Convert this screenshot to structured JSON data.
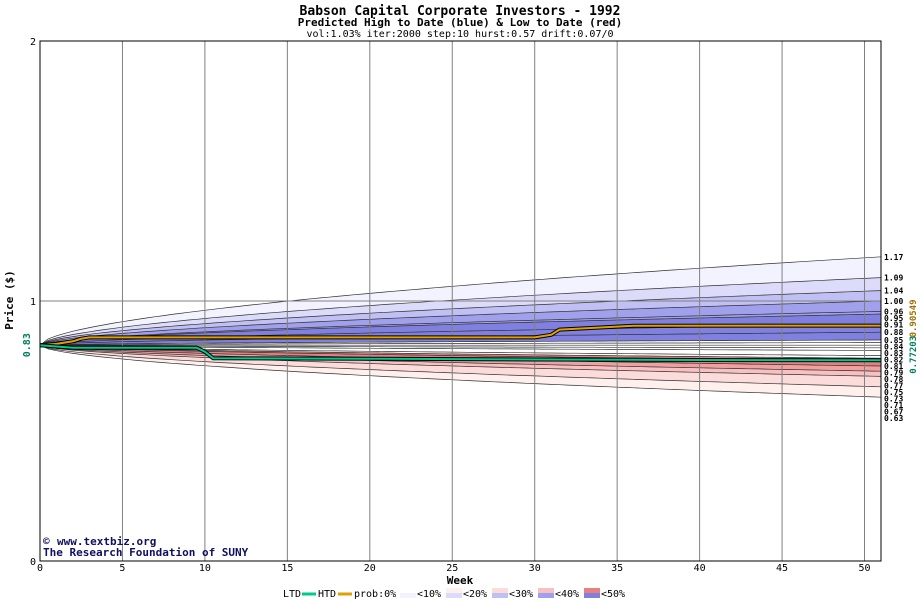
{
  "chart_data": {
    "type": "area",
    "title": "Babson Capital Corporate Investors - 1992",
    "subtitle": "Predicted High to Date (blue) &  Low to Date (red)",
    "params": "vol:1.03% iter:2000 step:10 hurst:0.57 drift:0.07/0",
    "xlabel": "Week",
    "ylabel": "Price ($)",
    "xlim": [
      0,
      51
    ],
    "ylim": [
      0,
      2
    ],
    "x_ticks": [
      0,
      5,
      10,
      15,
      20,
      25,
      30,
      35,
      40,
      45,
      50
    ],
    "y_ticks": [
      0,
      1,
      2
    ],
    "grid": true,
    "current_price": 0.83,
    "current_price_label": "0.83",
    "end_labels_right": [
      "0.77203",
      "0.90549"
    ],
    "end_label_colors": [
      "#008060",
      "#a07000"
    ],
    "high_levels": [
      "1.17",
      "1.09",
      "1.04",
      "1.00",
      "0.96",
      "0.95",
      "0.91",
      "0.88",
      "0.85",
      "0.84",
      "0.83"
    ],
    "low_levels": [
      "0.82",
      "0.81",
      "0.79",
      "0.78",
      "0.77",
      "0.75",
      "0.73",
      "0.71",
      "0.67",
      "0.63"
    ],
    "high_band_colors": [
      "#f3f3ff",
      "#dcdcfa",
      "#c0c0f4",
      "#a0a0ec",
      "#8080e0"
    ],
    "low_band_colors": [
      "#fff0ee",
      "#fcdcda",
      "#f8c0c0",
      "#f0a0a0",
      "#e88080"
    ],
    "series": [
      {
        "name": "HTD",
        "color": "#a07000",
        "x": [
          0,
          1,
          2,
          2.5,
          3,
          10,
          30,
          31,
          31.5,
          36,
          51
        ],
        "y": [
          0.83,
          0.835,
          0.845,
          0.855,
          0.86,
          0.86,
          0.86,
          0.87,
          0.89,
          0.905,
          0.90549
        ]
      },
      {
        "name": "LTD",
        "color": "#008060",
        "x": [
          0,
          1,
          2,
          9.5,
          10,
          10.5,
          20,
          30,
          40,
          51
        ],
        "y": [
          0.83,
          0.825,
          0.82,
          0.82,
          0.805,
          0.78,
          0.778,
          0.775,
          0.773,
          0.77203
        ]
      }
    ]
  },
  "credits": {
    "copyright": "©",
    "site": "www.textbiz.org",
    "org": "The Research Foundation of SUNY"
  },
  "legend": {
    "ltd": "LTD",
    "htd": "HTD",
    "ltd_color": "#00c890",
    "htd_color": "#e0a000",
    "prob_label": "prob:0%",
    "bins": [
      "<10%",
      "<20%",
      "<30%",
      "<40%",
      "<50%"
    ]
  }
}
